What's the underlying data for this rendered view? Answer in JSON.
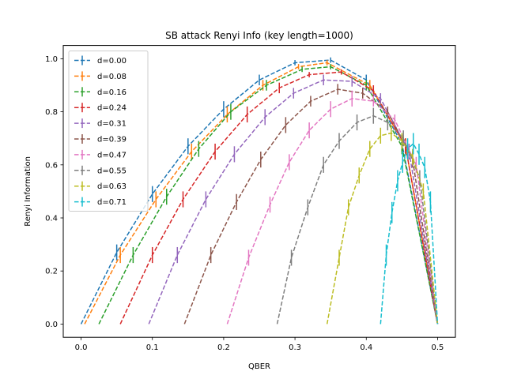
{
  "chart_data": {
    "type": "line",
    "title": "SB attack Renyi Info (key length=1000)",
    "xlabel": "QBER",
    "ylabel": "Renyi Information",
    "xlim": [
      -0.025,
      0.525
    ],
    "ylim": [
      -0.05,
      1.05
    ],
    "xticks": [
      "0.0",
      "0.1",
      "0.2",
      "0.3",
      "0.4",
      "0.5"
    ],
    "yticks": [
      "0.0",
      "0.2",
      "0.4",
      "0.6",
      "0.8",
      "1.0"
    ],
    "legend_position": "top-left",
    "grid": false,
    "line_style": "dashed",
    "error_bars": "vertical",
    "series": [
      {
        "name": "d=0.00",
        "color": "#1f77b4",
        "points": [
          [
            0.0,
            0.0
          ],
          [
            0.05,
            0.27
          ],
          [
            0.1,
            0.49
          ],
          [
            0.15,
            0.67
          ],
          [
            0.2,
            0.81
          ],
          [
            0.25,
            0.92
          ],
          [
            0.3,
            0.985
          ],
          [
            0.35,
            0.995
          ],
          [
            0.4,
            0.92
          ],
          [
            0.45,
            0.68
          ],
          [
            0.5,
            0.0
          ]
        ],
        "err": [
          0,
          0.03,
          0.03,
          0.03,
          0.03,
          0.02,
          0.01,
          0.01,
          0.02,
          0.03,
          0
        ]
      },
      {
        "name": "d=0.08",
        "color": "#ff7f0e",
        "points": [
          [
            0.005,
            0.0
          ],
          [
            0.055,
            0.26
          ],
          [
            0.105,
            0.47
          ],
          [
            0.155,
            0.65
          ],
          [
            0.205,
            0.79
          ],
          [
            0.255,
            0.9
          ],
          [
            0.305,
            0.97
          ],
          [
            0.345,
            0.985
          ],
          [
            0.405,
            0.9
          ],
          [
            0.455,
            0.67
          ],
          [
            0.5,
            0.0
          ]
        ],
        "err": [
          0,
          0.03,
          0.03,
          0.03,
          0.03,
          0.02,
          0.01,
          0.01,
          0.02,
          0.03,
          0
        ]
      },
      {
        "name": "d=0.16",
        "color": "#2ca02c",
        "points": [
          [
            0.025,
            0.0
          ],
          [
            0.073,
            0.26
          ],
          [
            0.12,
            0.48
          ],
          [
            0.165,
            0.66
          ],
          [
            0.21,
            0.8
          ],
          [
            0.26,
            0.9
          ],
          [
            0.31,
            0.96
          ],
          [
            0.35,
            0.97
          ],
          [
            0.4,
            0.9
          ],
          [
            0.45,
            0.67
          ],
          [
            0.5,
            0.0
          ]
        ],
        "err": [
          0,
          0.03,
          0.03,
          0.03,
          0.03,
          0.02,
          0.01,
          0.01,
          0.02,
          0.03,
          0
        ]
      },
      {
        "name": "d=0.24",
        "color": "#d62728",
        "points": [
          [
            0.055,
            0.0
          ],
          [
            0.1,
            0.26
          ],
          [
            0.143,
            0.47
          ],
          [
            0.188,
            0.65
          ],
          [
            0.233,
            0.79
          ],
          [
            0.278,
            0.89
          ],
          [
            0.32,
            0.94
          ],
          [
            0.365,
            0.95
          ],
          [
            0.41,
            0.88
          ],
          [
            0.455,
            0.67
          ],
          [
            0.5,
            0.0
          ]
        ],
        "err": [
          0,
          0.03,
          0.03,
          0.03,
          0.03,
          0.02,
          0.01,
          0.01,
          0.02,
          0.03,
          0
        ]
      },
      {
        "name": "d=0.31",
        "color": "#9467bd",
        "points": [
          [
            0.095,
            0.0
          ],
          [
            0.135,
            0.26
          ],
          [
            0.175,
            0.47
          ],
          [
            0.215,
            0.64
          ],
          [
            0.258,
            0.78
          ],
          [
            0.298,
            0.87
          ],
          [
            0.34,
            0.92
          ],
          [
            0.38,
            0.915
          ],
          [
            0.42,
            0.85
          ],
          [
            0.46,
            0.65
          ],
          [
            0.5,
            0.0
          ]
        ],
        "err": [
          0,
          0.03,
          0.03,
          0.03,
          0.03,
          0.02,
          0.02,
          0.02,
          0.02,
          0.03,
          0
        ]
      },
      {
        "name": "d=0.39",
        "color": "#8c564b",
        "points": [
          [
            0.145,
            0.0
          ],
          [
            0.182,
            0.26
          ],
          [
            0.218,
            0.46
          ],
          [
            0.252,
            0.62
          ],
          [
            0.287,
            0.75
          ],
          [
            0.322,
            0.84
          ],
          [
            0.36,
            0.885
          ],
          [
            0.395,
            0.87
          ],
          [
            0.43,
            0.8
          ],
          [
            0.465,
            0.62
          ],
          [
            0.5,
            0.0
          ]
        ],
        "err": [
          0,
          0.03,
          0.03,
          0.03,
          0.03,
          0.02,
          0.02,
          0.02,
          0.02,
          0.03,
          0
        ]
      },
      {
        "name": "d=0.47",
        "color": "#e377c2",
        "points": [
          [
            0.205,
            0.0
          ],
          [
            0.235,
            0.25
          ],
          [
            0.265,
            0.45
          ],
          [
            0.292,
            0.61
          ],
          [
            0.32,
            0.73
          ],
          [
            0.35,
            0.81
          ],
          [
            0.38,
            0.85
          ],
          [
            0.41,
            0.84
          ],
          [
            0.44,
            0.77
          ],
          [
            0.47,
            0.6
          ],
          [
            0.5,
            0.0
          ]
        ],
        "err": [
          0,
          0.03,
          0.03,
          0.03,
          0.03,
          0.03,
          0.03,
          0.02,
          0.02,
          0.03,
          0
        ]
      },
      {
        "name": "d=0.55",
        "color": "#7f7f7f",
        "points": [
          [
            0.275,
            0.0
          ],
          [
            0.295,
            0.25
          ],
          [
            0.318,
            0.44
          ],
          [
            0.34,
            0.6
          ],
          [
            0.362,
            0.69
          ],
          [
            0.387,
            0.76
          ],
          [
            0.41,
            0.785
          ],
          [
            0.43,
            0.76
          ],
          [
            0.452,
            0.7
          ],
          [
            0.475,
            0.55
          ],
          [
            0.5,
            0.0
          ]
        ],
        "err": [
          0,
          0.03,
          0.03,
          0.03,
          0.03,
          0.03,
          0.03,
          0.03,
          0.03,
          0.03,
          0
        ]
      },
      {
        "name": "d=0.63",
        "color": "#bcbd22",
        "points": [
          [
            0.345,
            0.0
          ],
          [
            0.362,
            0.25
          ],
          [
            0.375,
            0.44
          ],
          [
            0.39,
            0.56
          ],
          [
            0.405,
            0.66
          ],
          [
            0.42,
            0.71
          ],
          [
            0.435,
            0.72
          ],
          [
            0.45,
            0.69
          ],
          [
            0.465,
            0.63
          ],
          [
            0.48,
            0.5
          ],
          [
            0.5,
            0.0
          ]
        ],
        "err": [
          0,
          0.03,
          0.03,
          0.03,
          0.03,
          0.03,
          0.03,
          0.03,
          0.03,
          0.03,
          0
        ]
      },
      {
        "name": "d=0.71",
        "color": "#17becf",
        "points": [
          [
            0.42,
            0.0
          ],
          [
            0.428,
            0.26
          ],
          [
            0.436,
            0.42
          ],
          [
            0.444,
            0.54
          ],
          [
            0.451,
            0.61
          ],
          [
            0.458,
            0.66
          ],
          [
            0.466,
            0.68
          ],
          [
            0.474,
            0.64
          ],
          [
            0.482,
            0.59
          ],
          [
            0.49,
            0.46
          ],
          [
            0.5,
            0.0
          ]
        ],
        "err": [
          0,
          0.04,
          0.04,
          0.04,
          0.04,
          0.04,
          0.04,
          0.04,
          0.04,
          0.04,
          0
        ]
      }
    ]
  }
}
